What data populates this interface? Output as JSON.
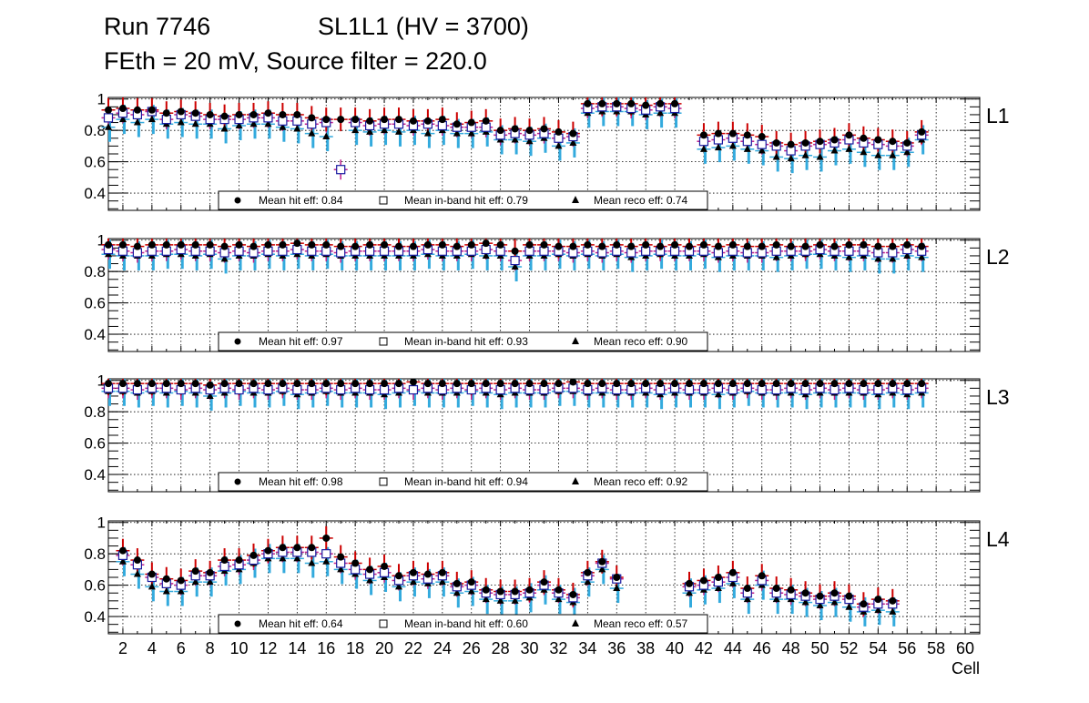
{
  "header": {
    "run": "Run 7746",
    "chamber": "SL1L1 (HV = 3700)",
    "settings": "FEth = 20 mV, Source filter = 220.0"
  },
  "colors": {
    "hit_marker": "#000000",
    "hit_error": "#cc0000",
    "inband_marker": "#1a1aa0",
    "inband_error": "#c0208c",
    "reco_marker": "#000000",
    "reco_error": "#33aadd",
    "grid": "#000000"
  },
  "chart_data": {
    "type": "scatter",
    "xlabel": "Cell",
    "ylabel": "",
    "xlim": [
      1,
      61
    ],
    "x_ticks": [
      "2",
      "4",
      "6",
      "8",
      "10",
      "12",
      "14",
      "16",
      "18",
      "20",
      "22",
      "24",
      "26",
      "28",
      "30",
      "32",
      "34",
      "36",
      "38",
      "40",
      "42",
      "44",
      "46",
      "48",
      "50",
      "52",
      "54",
      "56",
      "58",
      "60"
    ],
    "y_ticks": [
      "0.4",
      "0.6",
      "0.8",
      "1"
    ],
    "panels": [
      {
        "name": "L1",
        "ylim": [
          0.29,
          1.01
        ],
        "legend": {
          "hit": "Mean hit  eff: 0.84",
          "inband": "Mean in-band hit eff: 0.79",
          "reco": "Mean reco eff: 0.74"
        },
        "cells": [
          1,
          2,
          3,
          4,
          5,
          6,
          7,
          8,
          9,
          10,
          11,
          12,
          13,
          14,
          15,
          16,
          17,
          18,
          19,
          20,
          21,
          22,
          23,
          24,
          25,
          26,
          27,
          28,
          29,
          30,
          31,
          32,
          33,
          34,
          35,
          36,
          37,
          38,
          39,
          40,
          41,
          42,
          43,
          44,
          45,
          46,
          47,
          48,
          49,
          50,
          51,
          52,
          53,
          54,
          55,
          56,
          57
        ],
        "hit": [
          0.93,
          0.94,
          0.93,
          0.93,
          0.91,
          0.92,
          0.91,
          0.9,
          0.89,
          0.9,
          0.9,
          0.91,
          0.9,
          0.9,
          0.88,
          0.87,
          0.87,
          0.87,
          0.86,
          0.87,
          0.87,
          0.86,
          0.86,
          0.87,
          0.84,
          0.85,
          0.86,
          0.8,
          0.81,
          0.8,
          0.81,
          0.79,
          0.78,
          0.97,
          0.97,
          0.97,
          0.97,
          0.96,
          0.97,
          0.97,
          null,
          0.77,
          0.78,
          0.78,
          0.77,
          0.76,
          0.72,
          0.71,
          0.72,
          0.73,
          0.74,
          0.77,
          0.75,
          0.74,
          0.73,
          0.72,
          0.79
        ],
        "inband": [
          0.88,
          0.91,
          0.9,
          0.92,
          0.87,
          0.9,
          0.89,
          0.87,
          0.87,
          0.87,
          0.88,
          0.88,
          0.86,
          0.86,
          0.84,
          0.85,
          0.55,
          0.85,
          0.83,
          0.84,
          0.84,
          0.83,
          0.84,
          0.83,
          0.82,
          0.82,
          0.82,
          0.77,
          0.78,
          0.77,
          0.78,
          0.75,
          0.76,
          0.94,
          0.95,
          0.95,
          0.94,
          0.93,
          0.95,
          0.94,
          null,
          0.73,
          0.74,
          0.75,
          0.73,
          0.71,
          0.7,
          0.67,
          0.7,
          0.71,
          0.72,
          0.74,
          0.72,
          0.71,
          0.7,
          0.7,
          0.77
        ],
        "reco": [
          0.82,
          0.87,
          0.85,
          0.87,
          0.84,
          0.85,
          0.84,
          0.84,
          0.81,
          0.83,
          0.84,
          0.84,
          0.82,
          0.81,
          0.78,
          0.76,
          null,
          0.8,
          0.79,
          0.8,
          0.79,
          0.8,
          0.78,
          0.8,
          0.78,
          0.78,
          0.79,
          0.74,
          0.74,
          0.73,
          0.75,
          0.7,
          0.72,
          0.91,
          0.92,
          0.92,
          0.92,
          0.9,
          0.91,
          0.91,
          null,
          0.68,
          0.69,
          0.7,
          0.68,
          0.67,
          0.63,
          0.62,
          0.64,
          0.63,
          0.67,
          0.68,
          0.66,
          0.64,
          0.64,
          0.66,
          0.74
        ]
      },
      {
        "name": "L2",
        "ylim": [
          0.29,
          1.01
        ],
        "legend": {
          "hit": "Mean hit  eff: 0.97",
          "inband": "Mean in-band hit eff: 0.93",
          "reco": "Mean reco eff: 0.90"
        },
        "cells": [
          1,
          2,
          3,
          4,
          5,
          6,
          7,
          8,
          9,
          10,
          11,
          12,
          13,
          14,
          15,
          16,
          17,
          18,
          19,
          20,
          21,
          22,
          23,
          24,
          25,
          26,
          27,
          28,
          29,
          30,
          31,
          32,
          33,
          34,
          35,
          36,
          37,
          38,
          39,
          40,
          41,
          42,
          43,
          44,
          45,
          46,
          47,
          48,
          49,
          50,
          51,
          52,
          53,
          54,
          55,
          56,
          57
        ],
        "hit": [
          0.97,
          0.97,
          0.96,
          0.97,
          0.97,
          0.97,
          0.97,
          0.97,
          0.96,
          0.97,
          0.96,
          0.97,
          0.97,
          0.98,
          0.97,
          0.97,
          0.96,
          0.96,
          0.97,
          0.97,
          0.96,
          0.96,
          0.97,
          0.97,
          0.96,
          0.97,
          0.98,
          0.97,
          0.93,
          0.97,
          0.97,
          0.96,
          0.96,
          0.97,
          0.96,
          0.97,
          0.96,
          0.97,
          0.96,
          0.97,
          0.96,
          0.97,
          0.96,
          0.97,
          0.96,
          0.96,
          0.97,
          0.96,
          0.96,
          0.97,
          0.96,
          0.97,
          0.97,
          0.96,
          0.96,
          0.97,
          0.96
        ],
        "inband": [
          0.94,
          0.93,
          0.92,
          0.93,
          0.93,
          0.94,
          0.93,
          0.93,
          0.92,
          0.93,
          0.92,
          0.93,
          0.93,
          0.94,
          0.93,
          0.93,
          0.92,
          0.93,
          0.93,
          0.93,
          0.93,
          0.93,
          0.94,
          0.93,
          0.93,
          0.93,
          0.94,
          0.93,
          0.87,
          0.93,
          0.93,
          0.93,
          0.92,
          0.93,
          0.92,
          0.93,
          0.92,
          0.93,
          0.93,
          0.93,
          0.93,
          0.93,
          0.92,
          0.93,
          0.92,
          0.92,
          0.93,
          0.93,
          0.93,
          0.94,
          0.93,
          0.93,
          0.93,
          0.92,
          0.92,
          0.94,
          0.93
        ],
        "reco": [
          0.91,
          0.9,
          0.9,
          0.9,
          0.91,
          0.91,
          0.9,
          0.91,
          0.88,
          0.9,
          0.9,
          0.91,
          0.9,
          0.91,
          0.9,
          0.91,
          0.9,
          0.9,
          0.9,
          0.9,
          0.9,
          0.9,
          0.91,
          0.9,
          0.9,
          0.91,
          0.9,
          0.9,
          0.83,
          0.9,
          0.9,
          0.91,
          0.9,
          0.91,
          0.9,
          0.91,
          0.89,
          0.9,
          0.91,
          0.9,
          0.9,
          0.91,
          0.89,
          0.9,
          0.9,
          0.9,
          0.89,
          0.9,
          0.91,
          0.91,
          0.9,
          0.89,
          0.9,
          0.88,
          0.88,
          0.9,
          0.89
        ]
      },
      {
        "name": "L3",
        "ylim": [
          0.29,
          1.01
        ],
        "legend": {
          "hit": "Mean hit  eff: 0.98",
          "inband": "Mean in-band hit eff: 0.94",
          "reco": "Mean reco eff: 0.92"
        },
        "cells": [
          1,
          2,
          3,
          4,
          5,
          6,
          7,
          8,
          9,
          10,
          11,
          12,
          13,
          14,
          15,
          16,
          17,
          18,
          19,
          20,
          21,
          22,
          23,
          24,
          25,
          26,
          27,
          28,
          29,
          30,
          31,
          32,
          33,
          34,
          35,
          36,
          37,
          38,
          39,
          40,
          41,
          42,
          43,
          44,
          45,
          46,
          47,
          48,
          49,
          50,
          51,
          52,
          53,
          54,
          55,
          56,
          57
        ],
        "hit": [
          0.98,
          0.98,
          0.98,
          0.98,
          0.98,
          0.98,
          0.98,
          0.97,
          0.98,
          0.98,
          0.98,
          0.98,
          0.98,
          0.98,
          0.98,
          0.98,
          0.98,
          0.98,
          0.98,
          0.98,
          0.98,
          0.99,
          0.98,
          0.98,
          0.98,
          0.98,
          0.98,
          0.98,
          0.98,
          0.98,
          0.98,
          0.98,
          0.99,
          0.98,
          0.98,
          0.98,
          0.98,
          0.98,
          0.98,
          0.98,
          0.98,
          0.98,
          0.98,
          0.98,
          0.98,
          0.98,
          0.98,
          0.98,
          0.98,
          0.98,
          0.98,
          0.98,
          0.98,
          0.98,
          0.98,
          0.98,
          0.98
        ],
        "inband": [
          0.95,
          0.95,
          0.94,
          0.95,
          0.95,
          0.94,
          0.95,
          0.94,
          0.95,
          0.94,
          0.95,
          0.94,
          0.95,
          0.94,
          0.94,
          0.95,
          0.94,
          0.95,
          0.94,
          0.94,
          0.95,
          0.94,
          0.95,
          0.94,
          0.95,
          0.94,
          0.95,
          0.94,
          0.95,
          0.94,
          0.94,
          0.95,
          0.95,
          0.94,
          0.95,
          0.94,
          0.94,
          0.95,
          0.94,
          0.95,
          0.94,
          0.94,
          0.95,
          0.94,
          0.95,
          0.94,
          0.94,
          0.95,
          0.94,
          0.95,
          0.94,
          0.95,
          0.94,
          0.94,
          0.95,
          0.94,
          0.95
        ],
        "reco": [
          0.93,
          0.93,
          0.92,
          0.93,
          0.92,
          0.93,
          0.92,
          0.9,
          0.92,
          0.93,
          0.92,
          0.92,
          0.93,
          0.91,
          0.92,
          0.93,
          0.92,
          0.92,
          0.92,
          0.91,
          0.92,
          0.93,
          0.92,
          0.92,
          0.92,
          0.93,
          0.92,
          0.91,
          0.92,
          0.92,
          0.92,
          0.93,
          0.93,
          0.92,
          0.92,
          0.92,
          0.92,
          0.92,
          0.91,
          0.92,
          0.92,
          0.92,
          0.91,
          0.92,
          0.93,
          0.92,
          0.92,
          0.92,
          0.91,
          0.92,
          0.92,
          0.92,
          0.92,
          0.91,
          0.92,
          0.91,
          0.92
        ]
      },
      {
        "name": "L4",
        "ylim": [
          0.29,
          1.01
        ],
        "legend": {
          "hit": "Mean hit  eff: 0.64",
          "inband": "Mean in-band hit eff: 0.60",
          "reco": "Mean reco eff: 0.57"
        },
        "cells": [
          1,
          2,
          3,
          4,
          5,
          6,
          7,
          8,
          9,
          10,
          11,
          12,
          13,
          14,
          15,
          16,
          17,
          18,
          19,
          20,
          21,
          22,
          23,
          24,
          25,
          26,
          27,
          28,
          29,
          30,
          31,
          32,
          33,
          34,
          35,
          36,
          37,
          38,
          39,
          40,
          41,
          42,
          43,
          44,
          45,
          46,
          47,
          48,
          49,
          50,
          51,
          52,
          53,
          54,
          55,
          56,
          57
        ],
        "hit": [
          null,
          0.82,
          0.76,
          0.67,
          0.64,
          0.63,
          0.69,
          0.68,
          0.76,
          0.76,
          0.79,
          0.82,
          0.84,
          0.84,
          0.84,
          0.9,
          0.78,
          0.74,
          0.7,
          0.72,
          0.66,
          0.68,
          0.67,
          0.68,
          0.61,
          0.62,
          0.57,
          0.56,
          0.56,
          0.57,
          0.62,
          0.57,
          0.54,
          0.68,
          0.75,
          0.65,
          null,
          null,
          null,
          null,
          0.61,
          0.63,
          0.65,
          0.68,
          0.58,
          0.66,
          0.58,
          0.57,
          0.55,
          0.53,
          0.55,
          0.53,
          0.48,
          0.51,
          0.5,
          null,
          null
        ],
        "inband": [
          null,
          0.79,
          0.73,
          0.65,
          0.61,
          0.6,
          0.66,
          0.66,
          0.72,
          0.73,
          0.76,
          0.8,
          0.81,
          0.81,
          0.81,
          0.8,
          0.74,
          0.7,
          0.67,
          0.68,
          0.63,
          0.66,
          0.64,
          0.66,
          0.59,
          0.6,
          0.55,
          0.54,
          0.54,
          0.55,
          0.6,
          0.55,
          0.52,
          0.66,
          0.74,
          0.64,
          null,
          null,
          null,
          null,
          0.59,
          0.6,
          0.62,
          0.65,
          0.55,
          0.63,
          0.55,
          0.54,
          0.53,
          0.51,
          0.53,
          0.51,
          0.46,
          0.48,
          0.48,
          null,
          null
        ],
        "reco": [
          null,
          0.75,
          0.67,
          0.59,
          0.56,
          0.56,
          0.62,
          0.62,
          0.69,
          0.7,
          0.74,
          0.77,
          0.77,
          0.77,
          0.74,
          0.75,
          0.7,
          0.67,
          0.63,
          0.65,
          0.59,
          0.62,
          0.61,
          0.62,
          0.55,
          0.56,
          0.51,
          0.5,
          0.5,
          0.52,
          0.57,
          0.51,
          0.49,
          0.62,
          0.7,
          0.58,
          null,
          null,
          null,
          null,
          0.55,
          0.57,
          0.58,
          0.61,
          0.51,
          0.6,
          0.51,
          0.51,
          0.49,
          0.47,
          0.49,
          0.46,
          0.43,
          0.44,
          0.43,
          null,
          null
        ]
      }
    ]
  }
}
